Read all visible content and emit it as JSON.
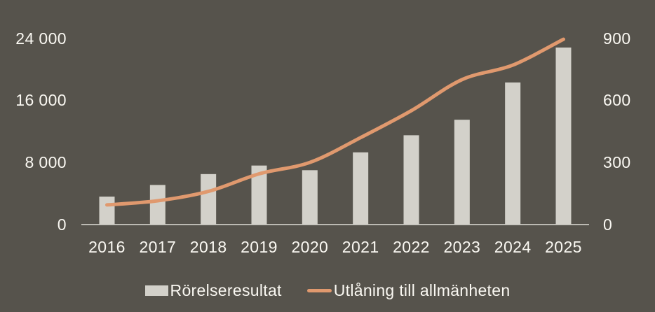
{
  "chart_data": {
    "type": "combo",
    "title": "",
    "categories": [
      "2016",
      "2017",
      "2018",
      "2019",
      "2020",
      "2021",
      "2022",
      "2023",
      "2024",
      "2025"
    ],
    "series": [
      {
        "name": "Rörelseresultat",
        "type": "bar",
        "axis": "left",
        "color": "#D3D1CA",
        "values": [
          3600,
          5100,
          6500,
          7600,
          7000,
          9300,
          11500,
          13500,
          18300,
          22800
        ]
      },
      {
        "name": "Utlåning till allmänheten",
        "type": "line",
        "axis": "right",
        "color": "#E0996E",
        "values": [
          95,
          115,
          160,
          245,
          300,
          420,
          550,
          700,
          770,
          895
        ]
      }
    ],
    "left_axis": {
      "min": 0,
      "max": 24000,
      "ticks": [
        0,
        8000,
        16000,
        24000
      ],
      "tick_labels": [
        "0",
        "8 000",
        "16 000",
        "24 000"
      ]
    },
    "right_axis": {
      "min": 0,
      "max": 900,
      "ticks": [
        0,
        300,
        600,
        900
      ],
      "tick_labels": [
        "0",
        "300",
        "600",
        "900"
      ]
    },
    "grid": false,
    "legend_position": "bottom"
  },
  "legend": {
    "bar_label": "Rörelseresultat",
    "line_label": "Utlåning till allmänheten"
  },
  "colors": {
    "background": "#56534C",
    "bar": "#D3D1CA",
    "line": "#E0996E",
    "text": "#FAF8F2",
    "axis_line": "#DEDCD5"
  }
}
